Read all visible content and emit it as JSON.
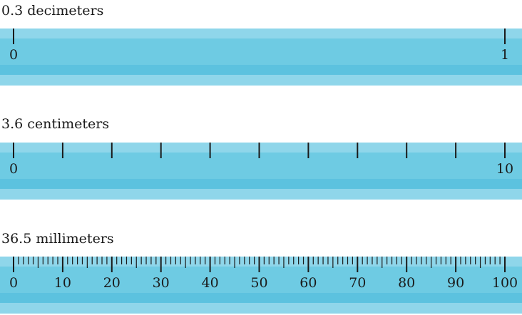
{
  "rulers": [
    {
      "caption": "0.3 decimeters",
      "major_labels": [
        "0",
        "1"
      ],
      "minor_per_major": 0
    },
    {
      "caption": "3.6 centimeters",
      "major_labels": [
        "0",
        "",
        "",
        "",
        "",
        "",
        "",
        "",
        "",
        "",
        "10"
      ],
      "minor_per_major": 0
    },
    {
      "caption": "36.5 millimeters",
      "major_labels": [
        "0",
        "10",
        "20",
        "30",
        "40",
        "50",
        "60",
        "70",
        "80",
        "90",
        "100"
      ],
      "minor_per_major": 10
    }
  ],
  "colors": {
    "ruler_band_light": "#8fd6ea",
    "ruler_body": "#6ecbe3",
    "ruler_stripe": "#5cc2df",
    "tick": "#1a1a1a"
  }
}
